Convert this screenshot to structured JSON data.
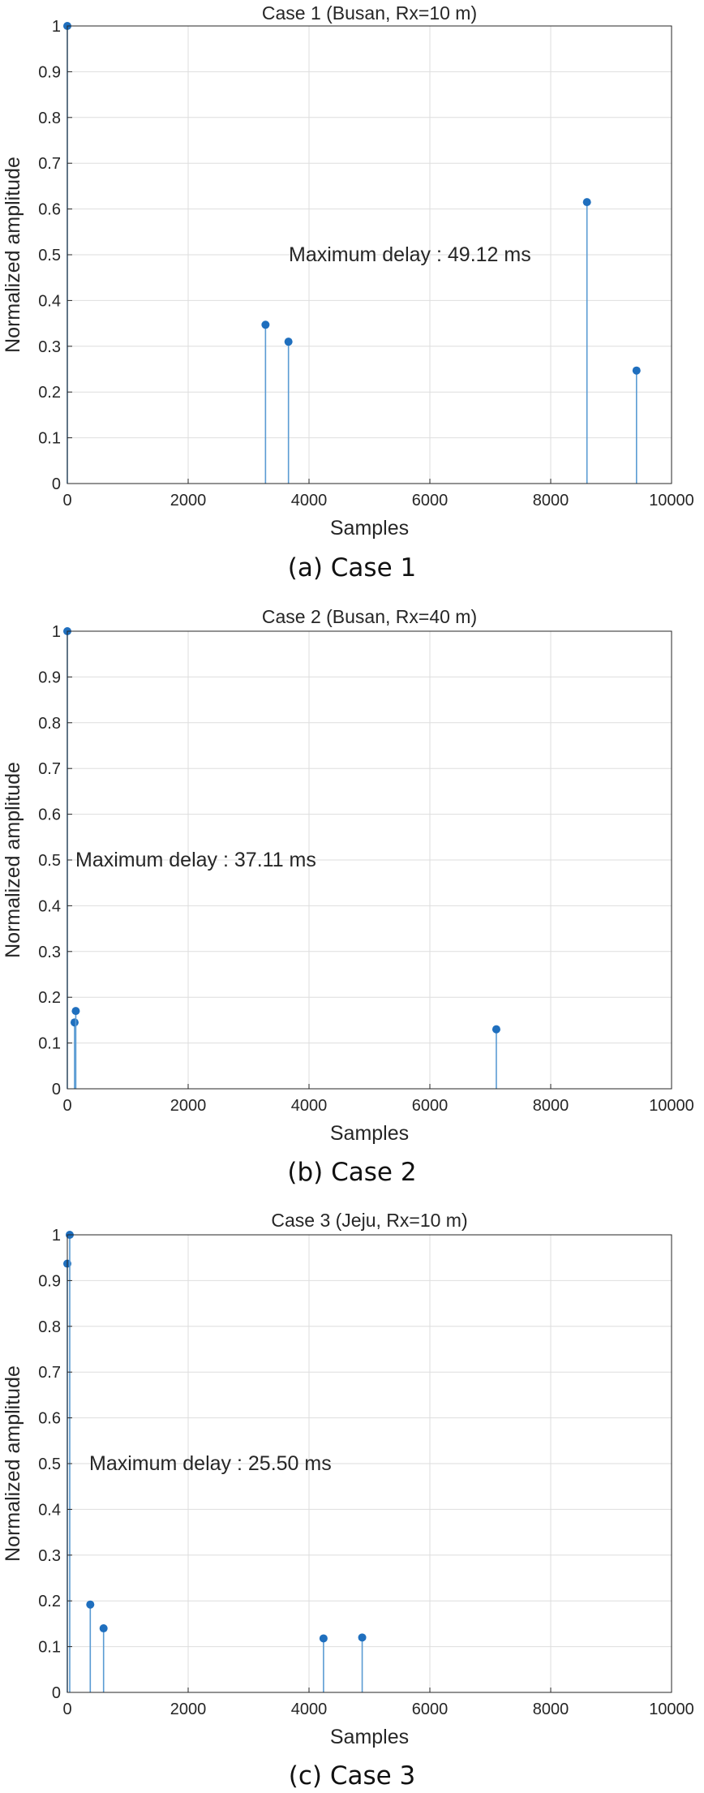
{
  "colors": {
    "stem": "#5a9bd3",
    "marker": "#1f6fbe",
    "grid": "#dedede",
    "axis": "#262626"
  },
  "chart_data": [
    {
      "type": "stem",
      "title": "Case 1 (Busan, Rx=10 m)",
      "xlabel": "Samples",
      "ylabel": "Normalized amplitude",
      "xlim": [
        0,
        10000
      ],
      "ylim": [
        0,
        1
      ],
      "xticks": [
        "0",
        "2000",
        "4000",
        "6000",
        "8000",
        "10000"
      ],
      "yticks": [
        "0",
        "0.1",
        "0.2",
        "0.3",
        "0.4",
        "0.5",
        "0.6",
        "0.7",
        "0.8",
        "0.9",
        "1"
      ],
      "grid": true,
      "x": [
        0,
        3280,
        3660,
        8600,
        9420
      ],
      "values": [
        1.0,
        0.347,
        0.31,
        0.615,
        0.247
      ],
      "annotation": "Maximum delay : 49.12 ms",
      "caption": "(a) Case 1"
    },
    {
      "type": "stem",
      "title": "Case 2 (Busan, Rx=40 m)",
      "xlabel": "Samples",
      "ylabel": "Normalized amplitude",
      "xlim": [
        0,
        10000
      ],
      "ylim": [
        0,
        1
      ],
      "xticks": [
        "0",
        "2000",
        "4000",
        "6000",
        "8000",
        "10000"
      ],
      "yticks": [
        "0",
        "0.1",
        "0.2",
        "0.3",
        "0.4",
        "0.5",
        "0.6",
        "0.7",
        "0.8",
        "0.9",
        "1"
      ],
      "grid": true,
      "x": [
        0,
        120,
        140,
        7100
      ],
      "values": [
        1.0,
        0.145,
        0.17,
        0.13
      ],
      "annotation": "Maximum delay : 37.11 ms",
      "caption": "(b) Case 2"
    },
    {
      "type": "stem",
      "title": "Case 3 (Jeju, Rx=10 m)",
      "xlabel": "Samples",
      "ylabel": "Normalized amplitude",
      "xlim": [
        0,
        10000
      ],
      "ylim": [
        0,
        1
      ],
      "xticks": [
        "0",
        "2000",
        "4000",
        "6000",
        "8000",
        "10000"
      ],
      "yticks": [
        "0",
        "0.1",
        "0.2",
        "0.3",
        "0.4",
        "0.5",
        "0.6",
        "0.7",
        "0.8",
        "0.9",
        "1"
      ],
      "grid": true,
      "x": [
        0,
        40,
        380,
        600,
        4240,
        4880
      ],
      "values": [
        0.937,
        1.0,
        0.192,
        0.14,
        0.118,
        0.12
      ],
      "annotation": "Maximum delay : 25.50 ms",
      "caption": "(c) Case 3"
    }
  ]
}
